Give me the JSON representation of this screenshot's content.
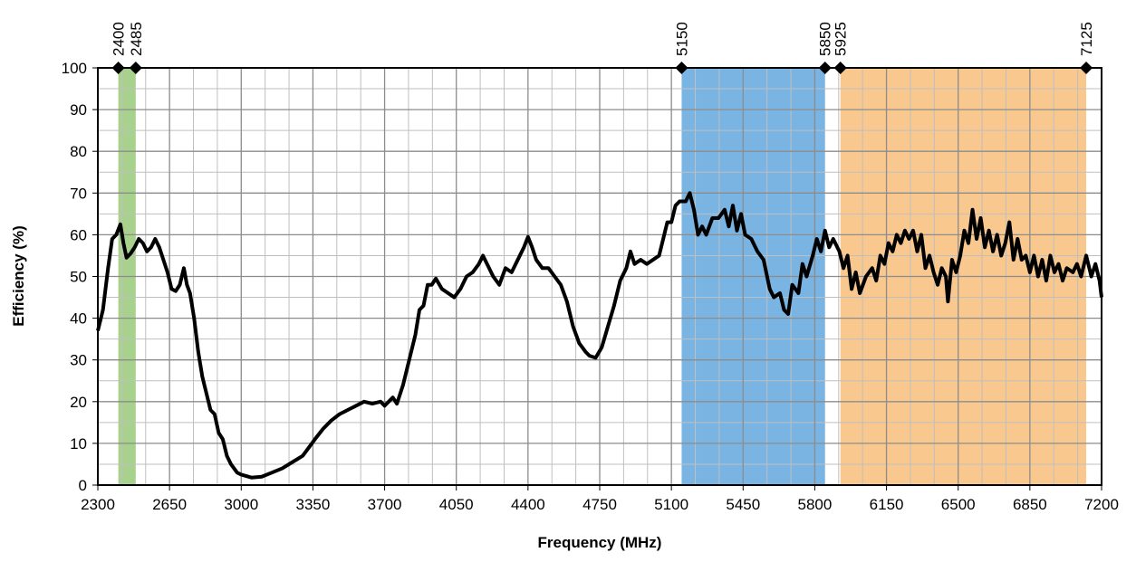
{
  "chart_data": {
    "type": "line",
    "x_label": "Frequency (MHz)",
    "y_label": "Efficiency (%)",
    "xlim": [
      2300,
      7200
    ],
    "xticks": [
      2300,
      2650,
      3000,
      3350,
      3700,
      4050,
      4400,
      4750,
      5100,
      5450,
      5800,
      6150,
      6500,
      6850,
      7200
    ],
    "ylim": [
      0,
      100
    ],
    "yticks": [
      0,
      10,
      20,
      30,
      40,
      50,
      60,
      70,
      80,
      90,
      100
    ],
    "grid": true,
    "bands": [
      {
        "start": 2400,
        "end": 2485,
        "color": "#a9d18e"
      },
      {
        "start": 5150,
        "end": 5850,
        "color": "#7ab4e3"
      },
      {
        "start": 5925,
        "end": 7125,
        "color": "#f9c88f"
      }
    ],
    "series": [
      {
        "color": "#000000",
        "x": [
          2300,
          2325,
          2350,
          2370,
          2390,
          2410,
          2425,
          2440,
          2460,
          2480,
          2500,
          2520,
          2540,
          2560,
          2580,
          2600,
          2620,
          2640,
          2660,
          2680,
          2700,
          2720,
          2735,
          2750,
          2770,
          2790,
          2810,
          2830,
          2850,
          2870,
          2890,
          2910,
          2930,
          2950,
          2980,
          3000,
          3050,
          3100,
          3150,
          3200,
          3250,
          3300,
          3330,
          3360,
          3400,
          3440,
          3480,
          3520,
          3560,
          3600,
          3640,
          3680,
          3700,
          3740,
          3760,
          3790,
          3820,
          3850,
          3870,
          3890,
          3910,
          3930,
          3950,
          3980,
          4010,
          4040,
          4070,
          4100,
          4130,
          4160,
          4180,
          4200,
          4230,
          4260,
          4290,
          4320,
          4350,
          4380,
          4400,
          4420,
          4440,
          4470,
          4500,
          4530,
          4560,
          4590,
          4620,
          4650,
          4680,
          4700,
          4730,
          4760,
          4790,
          4820,
          4850,
          4880,
          4900,
          4920,
          4950,
          4980,
          5010,
          5040,
          5060,
          5080,
          5100,
          5120,
          5140,
          5170,
          5190,
          5210,
          5230,
          5250,
          5270,
          5300,
          5330,
          5360,
          5380,
          5400,
          5420,
          5440,
          5460,
          5490,
          5520,
          5550,
          5580,
          5600,
          5630,
          5650,
          5670,
          5690,
          5720,
          5740,
          5760,
          5790,
          5810,
          5830,
          5850,
          5870,
          5890,
          5920,
          5940,
          5960,
          5980,
          6000,
          6020,
          6050,
          6080,
          6100,
          6120,
          6140,
          6160,
          6180,
          6200,
          6220,
          6240,
          6260,
          6280,
          6300,
          6320,
          6340,
          6360,
          6380,
          6400,
          6420,
          6440,
          6450,
          6470,
          6490,
          6510,
          6530,
          6550,
          6570,
          6590,
          6610,
          6630,
          6650,
          6670,
          6690,
          6710,
          6730,
          6750,
          6770,
          6790,
          6810,
          6830,
          6850,
          6870,
          6890,
          6910,
          6930,
          6950,
          6970,
          6990,
          7010,
          7030,
          7060,
          7080,
          7100,
          7125,
          7150,
          7170,
          7190,
          7200
        ],
        "values": [
          37,
          42,
          52,
          59,
          60,
          62.5,
          58,
          54.5,
          55.5,
          57,
          59,
          58,
          56,
          57,
          59,
          57,
          54,
          51,
          47,
          46.5,
          48,
          52,
          48,
          46,
          40,
          32,
          26,
          22,
          18,
          17,
          12.5,
          11,
          7,
          5,
          3,
          2.5,
          1.8,
          2,
          3,
          4,
          5.5,
          7,
          9,
          11,
          13.5,
          15.5,
          17,
          18,
          19,
          20,
          19.5,
          20,
          19,
          21,
          19.5,
          24,
          30,
          36,
          42,
          43,
          48,
          48,
          49.5,
          47,
          46,
          45,
          47,
          50,
          51,
          53,
          55,
          53,
          50,
          48,
          52,
          51,
          54,
          57,
          59.5,
          57,
          54,
          52,
          52,
          50,
          48,
          44,
          38,
          34,
          32,
          31,
          30.5,
          33,
          38,
          43,
          49,
          52,
          56,
          53,
          54,
          53,
          54,
          55,
          59,
          63,
          63,
          67,
          68,
          68,
          70,
          66,
          60,
          62,
          60,
          64,
          64,
          66,
          62,
          67,
          61,
          65,
          60,
          59,
          56,
          54,
          47,
          45,
          46,
          42,
          41,
          48,
          46,
          53,
          50,
          55,
          59,
          56,
          61,
          57,
          59,
          56,
          52,
          55,
          47,
          51,
          46,
          50,
          52,
          49,
          55,
          53,
          58,
          56,
          60,
          58,
          61,
          59,
          61,
          56,
          60,
          52,
          55,
          51,
          48,
          52,
          50,
          44,
          54,
          51,
          55,
          61,
          58,
          66,
          59,
          64,
          57,
          61,
          56,
          60,
          55,
          58,
          63,
          54,
          59,
          54,
          55,
          51,
          55,
          50,
          54,
          49,
          55,
          51,
          53,
          49,
          52,
          51,
          53,
          50,
          55,
          50,
          53,
          49,
          45
        ]
      }
    ]
  }
}
